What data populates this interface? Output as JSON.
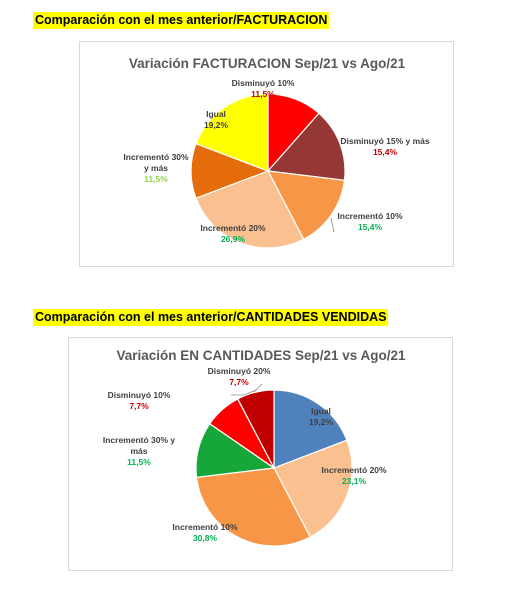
{
  "headings": {
    "first": "Comparación con el mes anterior/FACTURACION",
    "second": "Comparación con el mes anterior/CANTIDADES VENDIDAS"
  },
  "chart_data": [
    {
      "type": "pie",
      "title": "Variación FACTURACION Sep/21 vs Ago/21",
      "slices": [
        {
          "name": "Disminuyó 10%",
          "value": 11.5,
          "label": "11,5%",
          "color": "#ff0000",
          "value_color": "#c00000"
        },
        {
          "name": "Disminuyó 15% y más",
          "value": 15.4,
          "label": "15,4%",
          "color": "#953735",
          "value_color": "#c00000"
        },
        {
          "name": "Incrementó 10%",
          "value": 15.4,
          "label": "15,4%",
          "color": "#f79646",
          "value_color": "#00b050"
        },
        {
          "name": "Incrementó 20%",
          "value": 26.9,
          "label": "26,9%",
          "color": "#fac090",
          "value_color": "#00b050"
        },
        {
          "name": "Incrementó 30% y más",
          "value": 11.5,
          "label": "11,5%",
          "color": "#e46c0a",
          "value_color": "#92d050"
        },
        {
          "name": "Igual",
          "value": 19.2,
          "label": "19,2%",
          "color": "#ffff00",
          "value_color": "#404040"
        }
      ]
    },
    {
      "type": "pie",
      "title": "Variación EN CANTIDADES Sep/21 vs Ago/21",
      "slices": [
        {
          "name": "Igual",
          "value": 19.2,
          "label": "19,2%",
          "color": "#4f81bd",
          "value_color": "#404040"
        },
        {
          "name": "Incrementó 20%",
          "value": 23.1,
          "label": "23,1%",
          "color": "#fac090",
          "value_color": "#00b050"
        },
        {
          "name": "Incrementó 10%",
          "value": 30.8,
          "label": "30,8%",
          "color": "#f79646",
          "value_color": "#00b050"
        },
        {
          "name": "Incrementó 30% y más",
          "value": 11.5,
          "label": "11,5%",
          "color": "#17a63a",
          "value_color": "#00b050"
        },
        {
          "name": "Disminuyó 10%",
          "value": 7.7,
          "label": "7,7%",
          "color": "#ff0000",
          "value_color": "#c00000"
        },
        {
          "name": "Disminuyó 20%",
          "value": 7.7,
          "label": "7,7%",
          "color": "#c00000",
          "value_color": "#c00000"
        }
      ]
    }
  ]
}
